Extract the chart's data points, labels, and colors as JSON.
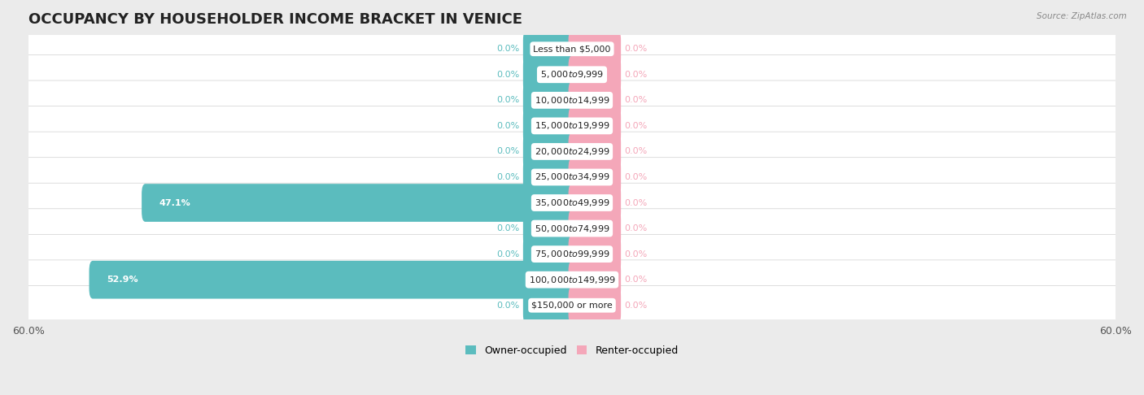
{
  "title": "OCCUPANCY BY HOUSEHOLDER INCOME BRACKET IN VENICE",
  "source": "Source: ZipAtlas.com",
  "categories": [
    "Less than $5,000",
    "$5,000 to $9,999",
    "$10,000 to $14,999",
    "$15,000 to $19,999",
    "$20,000 to $24,999",
    "$25,000 to $34,999",
    "$35,000 to $49,999",
    "$50,000 to $74,999",
    "$75,000 to $99,999",
    "$100,000 to $149,999",
    "$150,000 or more"
  ],
  "owner_values": [
    0.0,
    0.0,
    0.0,
    0.0,
    0.0,
    0.0,
    47.1,
    0.0,
    0.0,
    52.9,
    0.0
  ],
  "renter_values": [
    0.0,
    0.0,
    0.0,
    0.0,
    0.0,
    0.0,
    0.0,
    0.0,
    0.0,
    0.0,
    0.0
  ],
  "owner_color": "#5bbcbe",
  "renter_color": "#f4a7b9",
  "background_color": "#ebebeb",
  "row_bg_color": "#ffffff",
  "x_min": -60.0,
  "x_max": 60.0,
  "stub_size": 5.0,
  "legend_labels": [
    "Owner-occupied",
    "Renter-occupied"
  ],
  "title_fontsize": 13,
  "axis_fontsize": 9,
  "label_fontsize": 8,
  "category_fontsize": 8,
  "figsize": [
    14.06,
    4.86
  ],
  "dpi": 100
}
